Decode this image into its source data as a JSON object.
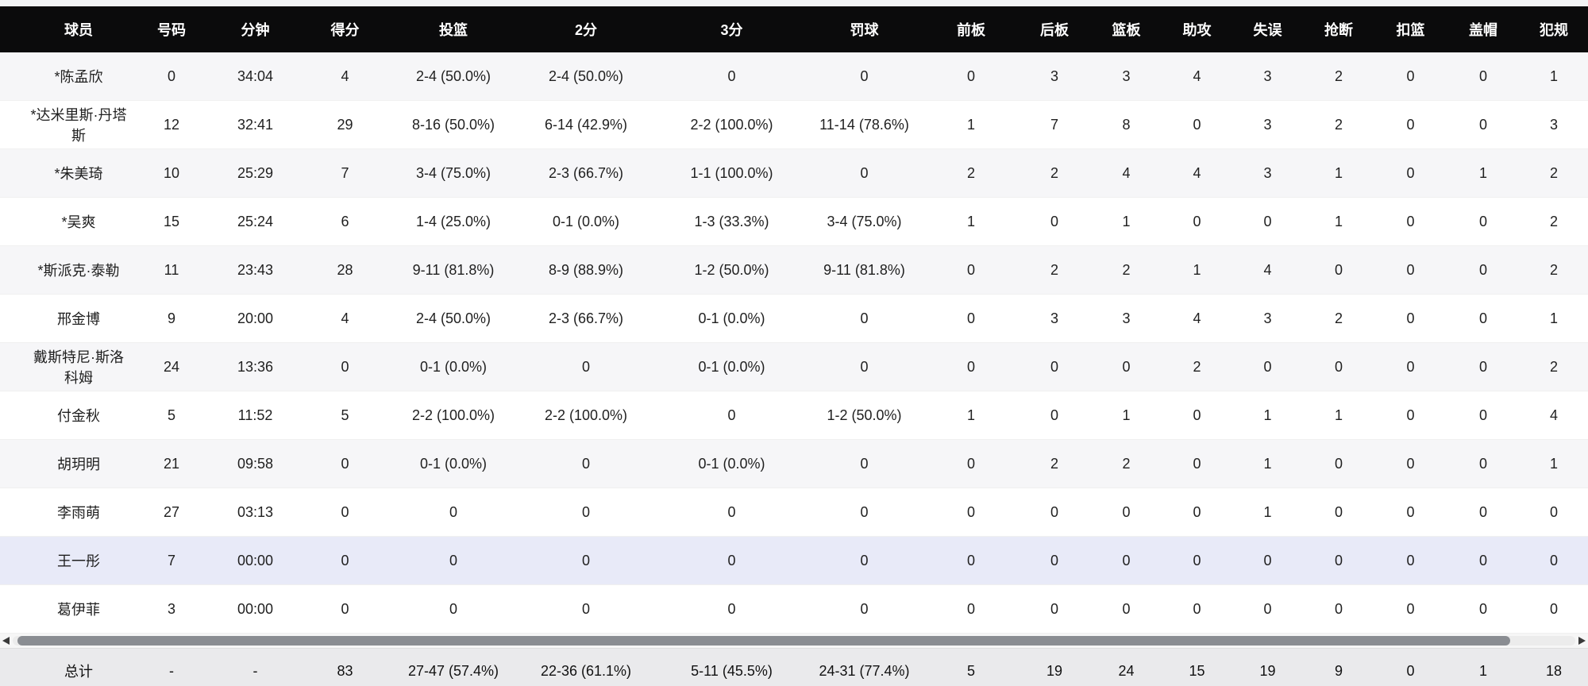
{
  "table": {
    "columns": [
      "球员",
      "号码",
      "分钟",
      "得分",
      "投篮",
      "2分",
      "3分",
      "罚球",
      "前板",
      "后板",
      "篮板",
      "助攻",
      "失误",
      "抢断",
      "扣篮",
      "盖帽",
      "犯规"
    ],
    "rows": [
      {
        "highlight": false,
        "cells": [
          "*陈孟欣",
          "0",
          "34:04",
          "4",
          "2-4 (50.0%)",
          "2-4 (50.0%)",
          "0",
          "0",
          "0",
          "3",
          "3",
          "4",
          "3",
          "2",
          "0",
          "0",
          "1"
        ]
      },
      {
        "highlight": false,
        "cells": [
          "*达米里斯·丹塔斯",
          "12",
          "32:41",
          "29",
          "8-16 (50.0%)",
          "6-14 (42.9%)",
          "2-2 (100.0%)",
          "11-14 (78.6%)",
          "1",
          "7",
          "8",
          "0",
          "3",
          "2",
          "0",
          "0",
          "3"
        ]
      },
      {
        "highlight": false,
        "cells": [
          "*朱美琦",
          "10",
          "25:29",
          "7",
          "3-4 (75.0%)",
          "2-3 (66.7%)",
          "1-1 (100.0%)",
          "0",
          "2",
          "2",
          "4",
          "4",
          "3",
          "1",
          "0",
          "1",
          "2"
        ]
      },
      {
        "highlight": false,
        "cells": [
          "*吴爽",
          "15",
          "25:24",
          "6",
          "1-4 (25.0%)",
          "0-1 (0.0%)",
          "1-3 (33.3%)",
          "3-4 (75.0%)",
          "1",
          "0",
          "1",
          "0",
          "0",
          "1",
          "0",
          "0",
          "2"
        ]
      },
      {
        "highlight": false,
        "cells": [
          "*斯派克·泰勒",
          "11",
          "23:43",
          "28",
          "9-11 (81.8%)",
          "8-9 (88.9%)",
          "1-2 (50.0%)",
          "9-11 (81.8%)",
          "0",
          "2",
          "2",
          "1",
          "4",
          "0",
          "0",
          "0",
          "2"
        ]
      },
      {
        "highlight": false,
        "cells": [
          "邢金博",
          "9",
          "20:00",
          "4",
          "2-4 (50.0%)",
          "2-3 (66.7%)",
          "0-1 (0.0%)",
          "0",
          "0",
          "3",
          "3",
          "4",
          "3",
          "2",
          "0",
          "0",
          "1"
        ]
      },
      {
        "highlight": false,
        "cells": [
          "戴斯特尼·斯洛科姆",
          "24",
          "13:36",
          "0",
          "0-1 (0.0%)",
          "0",
          "0-1 (0.0%)",
          "0",
          "0",
          "0",
          "0",
          "2",
          "0",
          "0",
          "0",
          "0",
          "2"
        ]
      },
      {
        "highlight": false,
        "cells": [
          "付金秋",
          "5",
          "11:52",
          "5",
          "2-2 (100.0%)",
          "2-2 (100.0%)",
          "0",
          "1-2 (50.0%)",
          "1",
          "0",
          "1",
          "0",
          "1",
          "1",
          "0",
          "0",
          "4"
        ]
      },
      {
        "highlight": false,
        "cells": [
          "胡玥明",
          "21",
          "09:58",
          "0",
          "0-1 (0.0%)",
          "0",
          "0-1 (0.0%)",
          "0",
          "0",
          "2",
          "2",
          "0",
          "1",
          "0",
          "0",
          "0",
          "1"
        ]
      },
      {
        "highlight": false,
        "cells": [
          "李雨萌",
          "27",
          "03:13",
          "0",
          "0",
          "0",
          "0",
          "0",
          "0",
          "0",
          "0",
          "0",
          "1",
          "0",
          "0",
          "0",
          "0"
        ]
      },
      {
        "highlight": true,
        "cells": [
          "王一彤",
          "7",
          "00:00",
          "0",
          "0",
          "0",
          "0",
          "0",
          "0",
          "0",
          "0",
          "0",
          "0",
          "0",
          "0",
          "0",
          "0"
        ]
      },
      {
        "highlight": false,
        "cells": [
          "葛伊菲",
          "3",
          "00:00",
          "0",
          "0",
          "0",
          "0",
          "0",
          "0",
          "0",
          "0",
          "0",
          "0",
          "0",
          "0",
          "0",
          "0"
        ]
      }
    ],
    "total_row": [
      "总计",
      "-",
      "-",
      "83",
      "27-47 (57.4%)",
      "22-36 (61.1%)",
      "5-11 (45.5%)",
      "24-31 (77.4%)",
      "5",
      "19",
      "24",
      "15",
      "19",
      "9",
      "0",
      "1",
      "18"
    ]
  },
  "scrollbar": {
    "left_arrow_icon": "left-triangle",
    "right_arrow_icon": "right-triangle"
  },
  "colors": {
    "header_bg": "#0b0b0c",
    "header_text": "#ffffff",
    "row_bg": "#ffffff",
    "row_alt_bg": "#f6f6f8",
    "highlight_row_bg": "#e8eaf8",
    "total_row_bg": "#eaeaec",
    "scrollbar_thumb": "#8a8d92",
    "body_text": "#1f1f1f"
  }
}
